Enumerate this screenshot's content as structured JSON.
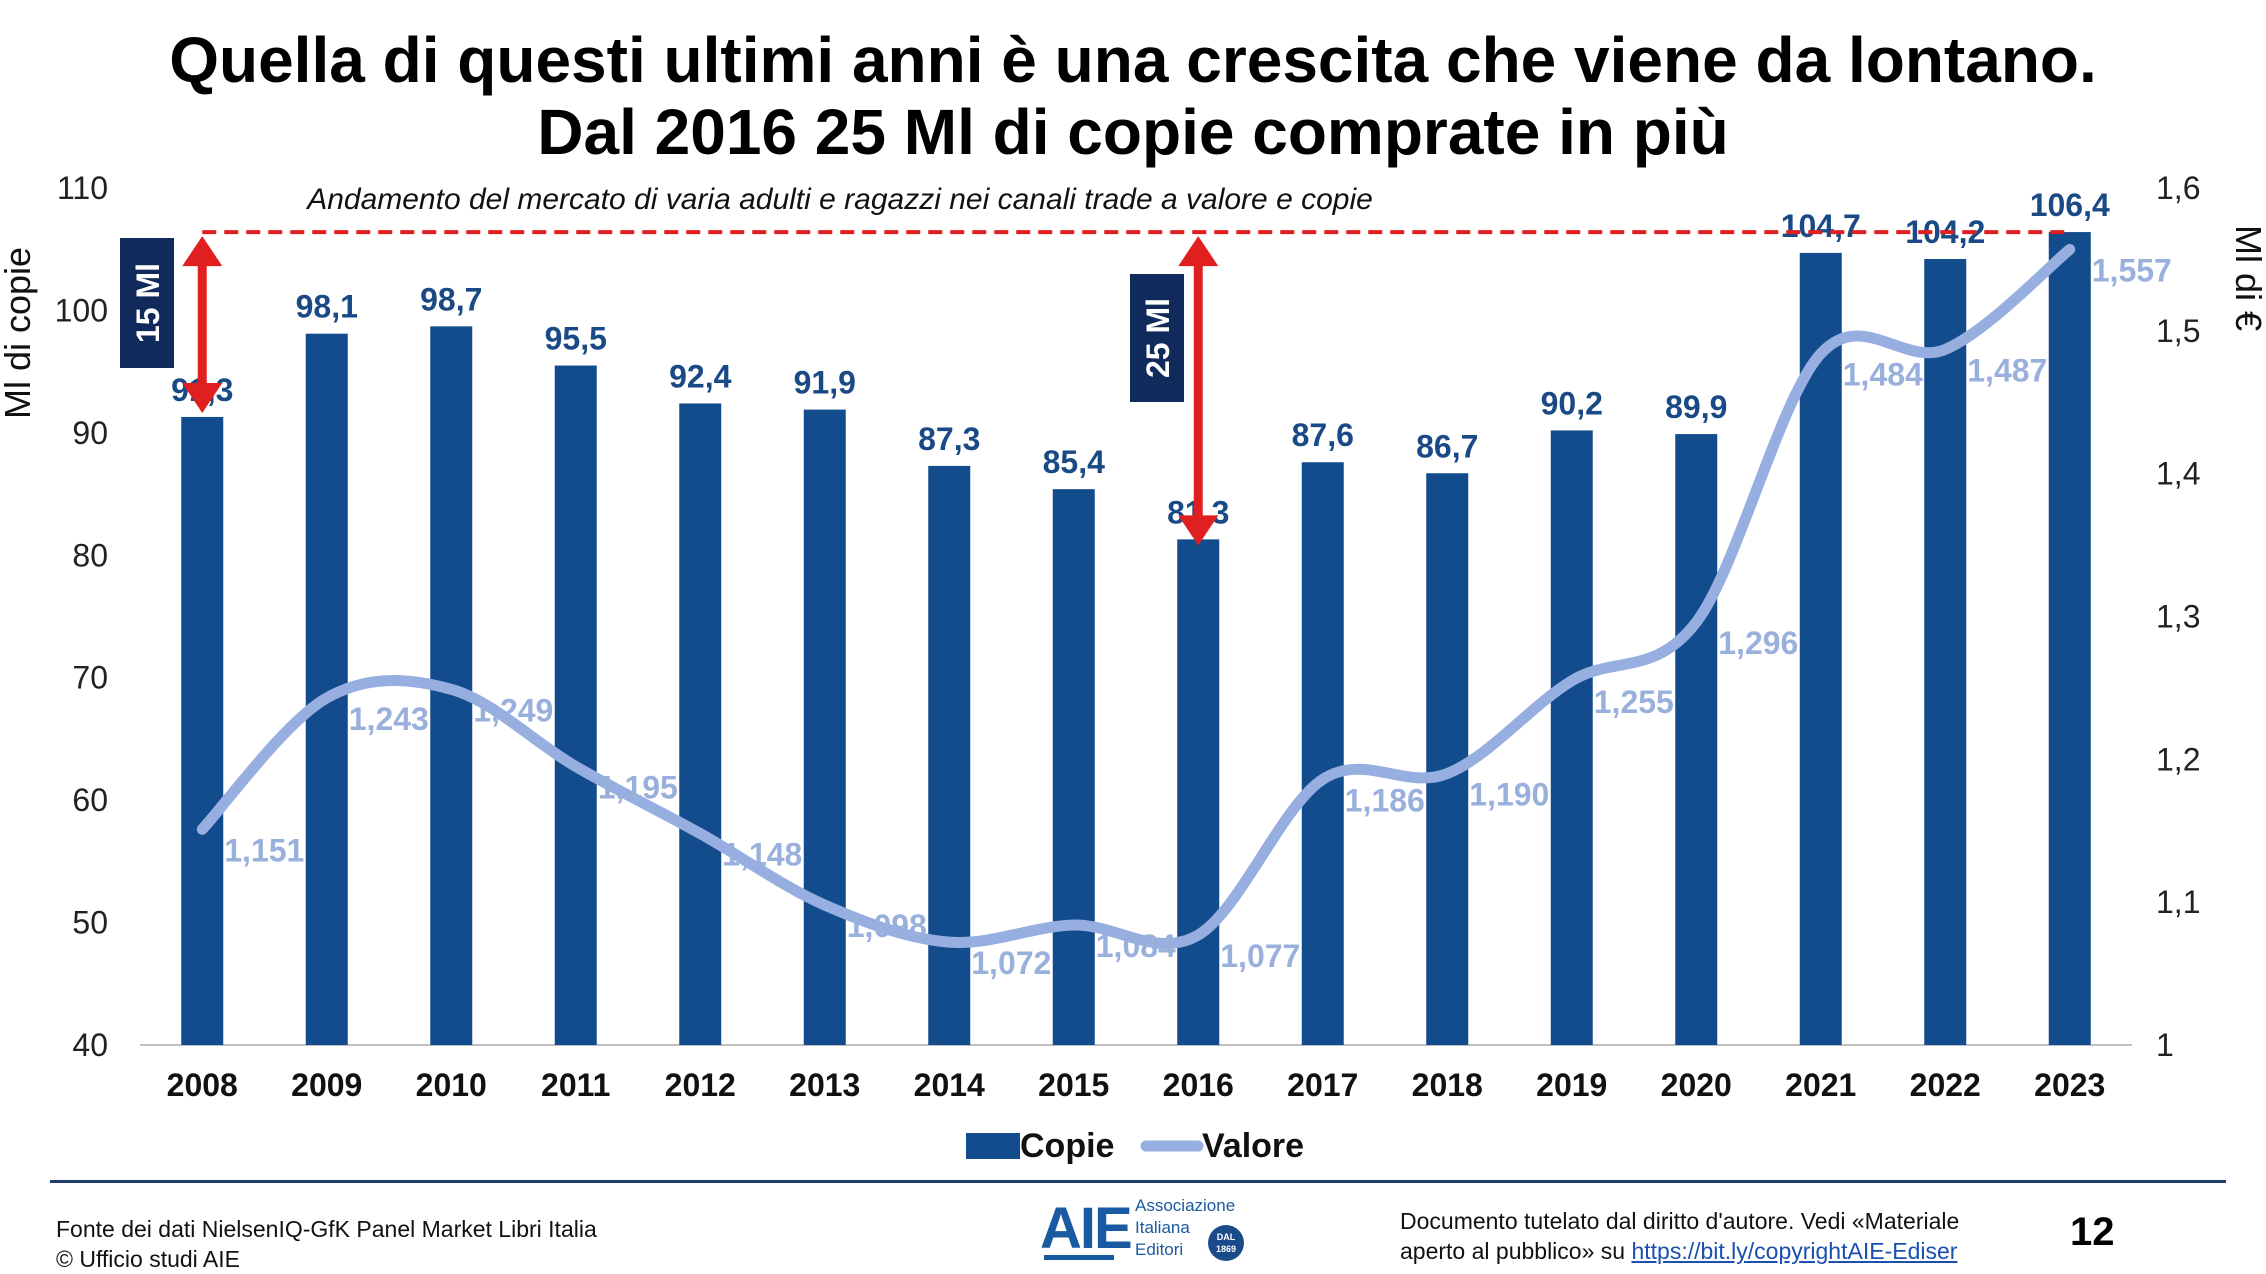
{
  "title": {
    "line1": "Quella di questi ultimi anni è una crescita che viene da lontano.",
    "line2": "Dal 2016 25 Ml di copie comprate in più"
  },
  "chart_data": {
    "type": "bar",
    "subtitle": "Andamento del mercato di varia adulti e ragazzi nei canali trade a valore e copie",
    "categories": [
      "2008",
      "2009",
      "2010",
      "2011",
      "2012",
      "2013",
      "2014",
      "2015",
      "2016",
      "2017",
      "2018",
      "2019",
      "2020",
      "2021",
      "2022",
      "2023"
    ],
    "series": [
      {
        "name": "Copie",
        "type": "bar",
        "axis": "left",
        "values": [
          91.3,
          98.1,
          98.7,
          95.5,
          92.4,
          91.9,
          87.3,
          85.4,
          81.3,
          87.6,
          86.7,
          90.2,
          89.9,
          104.7,
          104.2,
          106.4
        ],
        "labels": [
          "91,3",
          "98,1",
          "98,7",
          "95,5",
          "92,4",
          "91,9",
          "87,3",
          "85,4",
          "81,3",
          "87,6",
          "86,7",
          "90,2",
          "89,9",
          "104,7",
          "104,2",
          "106,4"
        ]
      },
      {
        "name": "Valore",
        "type": "line",
        "axis": "right",
        "values": [
          1.151,
          1.243,
          1.249,
          1.195,
          1.148,
          1.098,
          1.072,
          1.084,
          1.077,
          1.186,
          1.19,
          1.255,
          1.296,
          1.484,
          1.487,
          1.557
        ],
        "labels": [
          "1,151",
          "1,243",
          "1,249",
          "1,195",
          "1,148",
          "1,098",
          "1,072",
          "1,084",
          "1,077",
          "1,186",
          "1,190",
          "1,255",
          "1,296",
          "1,484",
          "1,487",
          "1,557"
        ]
      }
    ],
    "ylabel": "Ml di copie",
    "ylabel_right": "Ml di €",
    "ylim": [
      40,
      110
    ],
    "ylim_right": [
      1.0,
      1.6
    ],
    "yticks": [
      40,
      50,
      60,
      70,
      80,
      90,
      100,
      110
    ],
    "yticks_right": [
      {
        "value": 1.0,
        "label": "1"
      },
      {
        "value": 1.1,
        "label": "1,1"
      },
      {
        "value": 1.2,
        "label": "1,2"
      },
      {
        "value": 1.3,
        "label": "1,3"
      },
      {
        "value": 1.4,
        "label": "1,4"
      },
      {
        "value": 1.5,
        "label": "1,5"
      },
      {
        "value": 1.6,
        "label": "1,6"
      }
    ],
    "grid": false,
    "legend": "bottom",
    "reference_line": {
      "value": 106.4,
      "style": "dashed",
      "color": "#e02020"
    },
    "annotations": [
      {
        "text": "15 Ml",
        "from_category": "2008",
        "from": 91.3,
        "to": 106.4
      },
      {
        "text": "25 Ml",
        "from_category": "2016",
        "from": 81.3,
        "to": 106.4
      }
    ]
  },
  "colors": {
    "bars": "#124c8c",
    "bar_labels": "#1a4a86",
    "line": "#97aee0",
    "line_labels": "#9ab0dc",
    "reference": "#e02020",
    "annotation_box": "#102a5c",
    "footer_rule": "#1f3d6d"
  },
  "footer": {
    "source_line1": "Fonte dei dati NielsenIQ-GfK Panel Market Libri Italia",
    "source_line2": "© Ufficio studi AIE",
    "logo_mark": "AIE",
    "logo_line1": "Associazione",
    "logo_line2": "Italiana",
    "logo_line3": "Editori",
    "logo_seal_line1": "DAL",
    "logo_seal_line2": "1869",
    "copyright_line1": "Documento tutelato dal diritto d'autore. Vedi «Materiale",
    "copyright_line2_prefix": "aperto al pubblico» su",
    "copyright_link": "https://bit.ly/copyrightAIE-Ediser",
    "page_number": "12"
  }
}
